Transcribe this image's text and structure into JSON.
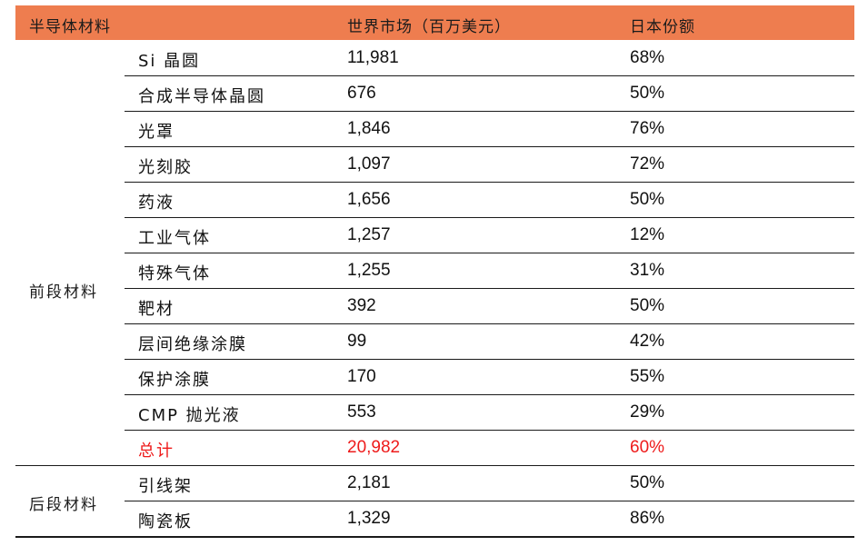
{
  "headers": {
    "material": "半导体材料",
    "market": "世界市场（百万美元）",
    "japan_share": "日本份额"
  },
  "front_group": {
    "label": "前段材料",
    "rows": [
      {
        "name": "Si 晶圆",
        "market": "11,981",
        "share": "68%"
      },
      {
        "name": "合成半导体晶圆",
        "market": "676",
        "share": "50%"
      },
      {
        "name": "光罩",
        "market": "1,846",
        "share": "76%"
      },
      {
        "name": "光刻胶",
        "market": "1,097",
        "share": "72%"
      },
      {
        "name": "药液",
        "market": "1,656",
        "share": "50%"
      },
      {
        "name": "工业气体",
        "market": "1,257",
        "share": "12%"
      },
      {
        "name": "特殊气体",
        "market": "1,255",
        "share": "31%"
      },
      {
        "name": "靶材",
        "market": "392",
        "share": "50%"
      },
      {
        "name": "层间绝缘涂膜",
        "market": "99",
        "share": "42%"
      },
      {
        "name": "保护涂膜",
        "market": "170",
        "share": "55%"
      },
      {
        "name": "CMP 抛光液",
        "market": "553",
        "share": "29%"
      },
      {
        "name": "总计",
        "market": "20,982",
        "share": "60%"
      }
    ]
  },
  "back_group": {
    "label": "后段材料",
    "rows": [
      {
        "name": "引线架",
        "market": "2,181",
        "share": "50%"
      },
      {
        "name": "陶瓷板",
        "market": "1,329",
        "share": "86%"
      }
    ]
  },
  "colors": {
    "header_bg": "#ee7d4f",
    "total_text": "#ee1b1b"
  }
}
